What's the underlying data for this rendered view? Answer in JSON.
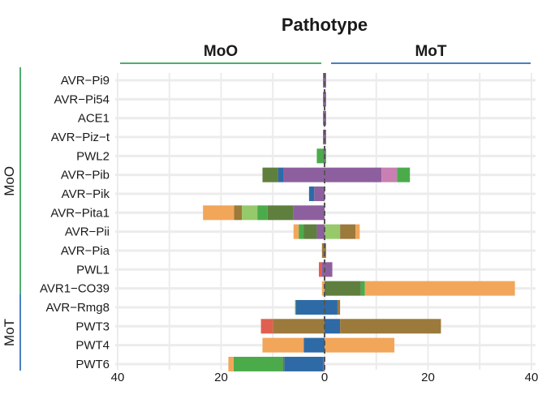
{
  "chart_data": {
    "type": "bar",
    "orientation": "horizontal-diverging",
    "title": "Pathotype",
    "panels": [
      "MoO",
      "MoT"
    ],
    "panel_colors": {
      "MoO": "#4caf6e",
      "MoT": "#4a7fc1"
    },
    "row_groups": [
      {
        "name": "MoO",
        "first": 0,
        "last": 11,
        "color": "#4caf6e"
      },
      {
        "name": "MoT",
        "first": 12,
        "last": 15,
        "color": "#4a7fc1"
      }
    ],
    "categories": [
      "AVR−Pi9",
      "AVR−Pi54",
      "ACE1",
      "AVR−Piz−t",
      "PWL2",
      "AVR−Pib",
      "AVR−Pik",
      "AVR−Pita1",
      "AVR−Pii",
      "AVR−Pia",
      "PWL1",
      "AVR1−CO39",
      "AVR−Rmg8",
      "PWT3",
      "PWT4",
      "PWT6"
    ],
    "xlim": [
      -40,
      40
    ],
    "xticks": [
      -40,
      -20,
      0,
      20,
      40
    ],
    "xtick_labels": [
      "40",
      "20",
      "0",
      "20",
      "40"
    ],
    "grid": true,
    "series": [
      {
        "name": "purple",
        "color": "#8e5f9e",
        "left": [
          0.3,
          0.3,
          0.3,
          0.3,
          0.3,
          8,
          2,
          6,
          1.5,
          0,
          0.6,
          0,
          0,
          0,
          0,
          0.3
        ],
        "right": [
          0.3,
          0.3,
          0.3,
          0.3,
          0,
          11,
          0,
          0,
          0,
          0,
          1.5,
          0,
          0,
          0,
          0,
          0
        ]
      },
      {
        "name": "pink",
        "color": "#c97fb2",
        "left": [
          0,
          0,
          0,
          0,
          0,
          0,
          0,
          0,
          0,
          0,
          0,
          0,
          0,
          0,
          0,
          0
        ],
        "right": [
          0,
          0,
          0,
          0,
          0,
          3,
          0,
          0,
          0,
          0,
          0,
          0,
          0,
          0,
          0,
          0
        ]
      },
      {
        "name": "dark blue",
        "color": "#2e6aa6",
        "left": [
          0,
          0,
          0,
          0,
          0,
          1,
          1,
          0,
          0,
          0,
          0,
          0,
          5.5,
          0,
          4,
          7.5
        ],
        "right": [
          0,
          0,
          0,
          0,
          0,
          0,
          0,
          0,
          0,
          0,
          0,
          0,
          2.5,
          3,
          0,
          0
        ]
      },
      {
        "name": "olive green",
        "color": "#5f7f3e",
        "left": [
          0,
          0,
          0,
          0,
          0,
          3,
          0,
          5,
          2.5,
          0,
          0,
          0,
          0,
          0,
          0,
          0.3
        ],
        "right": [
          0,
          0,
          0,
          0,
          0,
          0,
          0,
          0,
          0,
          0,
          0,
          7,
          0,
          0,
          0,
          0
        ]
      },
      {
        "name": "green",
        "color": "#4bab4b",
        "left": [
          0,
          0,
          0,
          0,
          1.2,
          0,
          0,
          2,
          1,
          0,
          0,
          0,
          0.2,
          0,
          0,
          9.5
        ],
        "right": [
          0,
          0,
          0,
          0,
          0.3,
          2.5,
          0,
          0,
          0,
          0,
          0,
          0.8,
          0,
          0,
          0,
          0
        ]
      },
      {
        "name": "light green",
        "color": "#96c96a",
        "left": [
          0,
          0,
          0,
          0,
          0,
          0,
          0,
          3,
          0,
          0,
          0,
          0,
          0,
          0,
          0,
          0
        ],
        "right": [
          0,
          0,
          0,
          0,
          0,
          0,
          0,
          0,
          3,
          0,
          0,
          0,
          0,
          0,
          0,
          0
        ]
      },
      {
        "name": "brown",
        "color": "#9c7a3c",
        "left": [
          0,
          0,
          0,
          0,
          0,
          0,
          0,
          1.5,
          0,
          0.5,
          0,
          0,
          0,
          10,
          0,
          0
        ],
        "right": [
          0,
          0,
          0,
          0,
          0,
          0,
          0,
          0,
          3,
          0.3,
          0,
          0,
          0.5,
          19.5,
          0,
          0
        ]
      },
      {
        "name": "orange",
        "color": "#f2a65a",
        "left": [
          0,
          0,
          0,
          0,
          0,
          0,
          0,
          6,
          1,
          0,
          0,
          0.5,
          0,
          0,
          8,
          1
        ],
        "right": [
          0,
          0,
          0,
          0,
          0,
          0,
          0,
          0,
          0.8,
          0,
          0,
          29,
          0,
          0,
          13.5,
          0
        ]
      },
      {
        "name": "red",
        "color": "#e06050",
        "left": [
          0,
          0,
          0,
          0,
          0,
          0,
          0,
          0,
          0,
          0,
          0.5,
          0,
          0,
          2.3,
          0,
          0
        ],
        "right": [
          0,
          0,
          0,
          0,
          0,
          0,
          0,
          0,
          0,
          0,
          0,
          0,
          0,
          0,
          0,
          0
        ]
      }
    ]
  }
}
